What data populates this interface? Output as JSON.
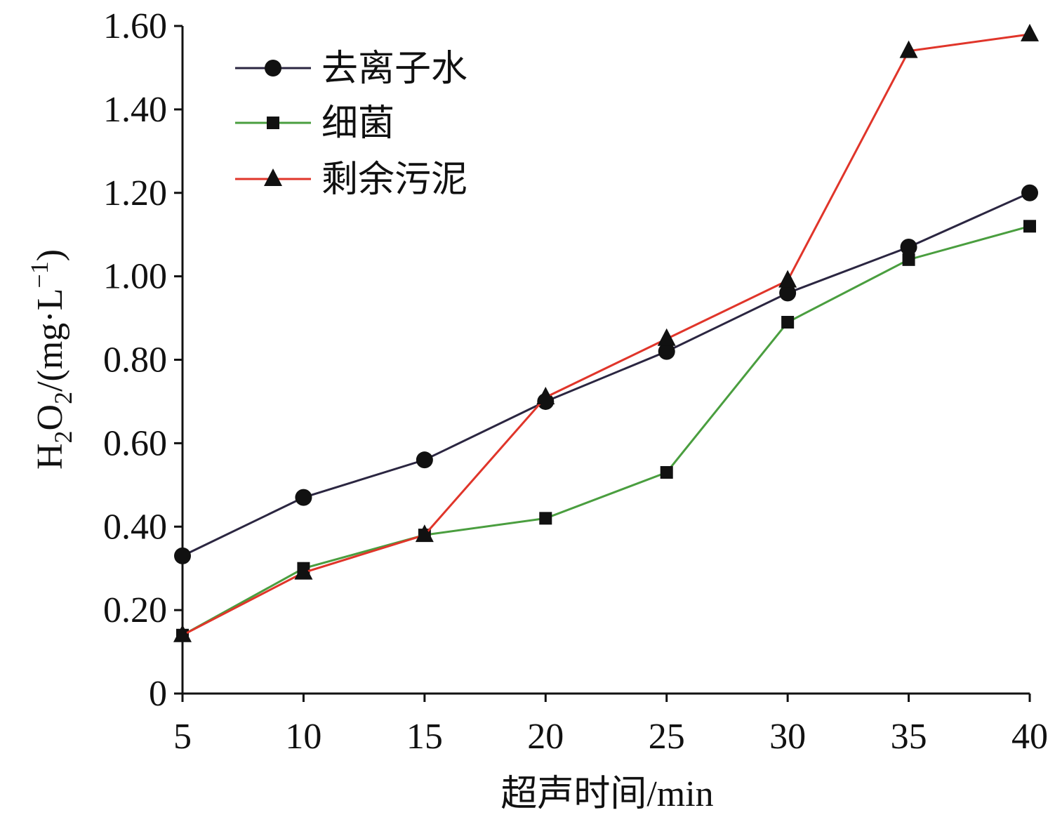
{
  "chart_data": {
    "type": "line",
    "title": "",
    "xlabel": "超声时间/min",
    "ylabel": "H2O2/(mg·L−1)",
    "ylabel_parts": {
      "a": "H",
      "sub1": "2",
      "b": "O",
      "sub2": "2",
      "c": "/(mg·L",
      "sup": "−1",
      "d": ")"
    },
    "x": [
      5,
      10,
      15,
      20,
      25,
      30,
      35,
      40
    ],
    "xlim": [
      5,
      40
    ],
    "ylim": [
      0,
      1.6
    ],
    "xticks": [
      "5",
      "10",
      "15",
      "20",
      "25",
      "30",
      "35",
      "40"
    ],
    "yticks": [
      {
        "value": 0,
        "label": "0"
      },
      {
        "value": 0.2,
        "label": "0.20"
      },
      {
        "value": 0.4,
        "label": "0.40"
      },
      {
        "value": 0.6,
        "label": "0.60"
      },
      {
        "value": 0.8,
        "label": "0.80"
      },
      {
        "value": 1.0,
        "label": "1.00"
      },
      {
        "value": 1.2,
        "label": "1.20"
      },
      {
        "value": 1.4,
        "label": "1.40"
      },
      {
        "value": 1.6,
        "label": "1.60"
      }
    ],
    "grid": false,
    "legend_position": "top-left",
    "series": [
      {
        "name": "去离子水",
        "marker": "circle",
        "color": "#2b2641",
        "values": [
          0.33,
          0.47,
          0.56,
          0.7,
          0.82,
          0.96,
          1.07,
          1.2
        ]
      },
      {
        "name": "细菌",
        "marker": "square",
        "color": "#4a9e3f",
        "values": [
          0.14,
          0.3,
          0.38,
          0.42,
          0.53,
          0.89,
          1.04,
          1.12
        ]
      },
      {
        "name": "剩余污泥",
        "marker": "triangle",
        "color": "#e0352a",
        "values": [
          0.14,
          0.29,
          0.38,
          0.71,
          0.85,
          0.99,
          1.54,
          1.58
        ]
      }
    ]
  }
}
